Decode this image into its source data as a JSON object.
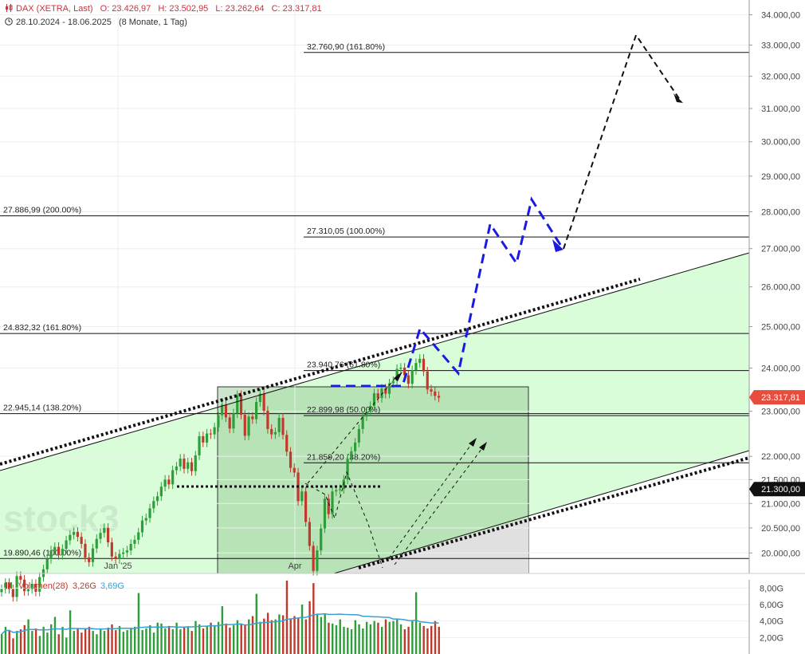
{
  "header": {
    "symbol": "DAX (XETRA, Last)",
    "open": "O: 23.426,97",
    "high": "H: 23.502,95",
    "low": "L: 23.262,64",
    "close": "C: 23.317,81",
    "range": "28.10.2024 - 18.06.2025",
    "period": "(8 Monate, 1 Tag)"
  },
  "watermark": "stock3",
  "colors": {
    "up": "#2e9e3a",
    "down": "#c0392b",
    "channel_fill": "#d9fdd9",
    "box_fill": "#8fc48f",
    "blue_path": "#1a1ae0",
    "price_badge": "#e74c3c",
    "level_badge": "#111111",
    "volume_avg": "#3aa0d0"
  },
  "chart_data": {
    "type": "candlestick",
    "y_scale": "log",
    "ylim": [
      19600,
      34500
    ],
    "y_ticks": [
      "20.000,00",
      "20.500,00",
      "21.000,00",
      "21.500,00",
      "22.000,00",
      "23.000,00",
      "24.000,00",
      "25.000,00",
      "26.000,00",
      "27.000,00",
      "28.000,00",
      "29.000,00",
      "30.000,00",
      "31.000,00",
      "32.000,00",
      "33.000,00",
      "34.000,00"
    ],
    "x_labels": [
      {
        "label": "Jan '25",
        "date": "2025-01-02"
      },
      {
        "label": "Apr",
        "date": "2025-04-01"
      }
    ],
    "last_price": {
      "value": 23317.81,
      "label": "23.317,81"
    },
    "marked_level": {
      "value": 21300,
      "label": "21.300,00"
    },
    "fib_levels": [
      {
        "value": 32760.9,
        "label": "32.760,90 (161.80%)"
      },
      {
        "value": 27886.99,
        "label": "27.886,99 (200.00%)"
      },
      {
        "value": 27310.05,
        "label": "27.310,05 (100.00%)"
      },
      {
        "value": 24832.32,
        "label": "24.832,32 (161.80%)"
      },
      {
        "value": 23940.76,
        "label": "23.940,76 (61.80%)"
      },
      {
        "value": 22945.14,
        "label": "22.945,14 (138.20%)"
      },
      {
        "value": 22899.98,
        "label": "22.899,98 (50.00%)"
      },
      {
        "value": 21859.2,
        "label": "21.859,20 (38.20%)"
      },
      {
        "value": 19890.46,
        "label": "19.890,46 (100.00%)"
      }
    ],
    "close_series": [
      19300,
      19420,
      19300,
      19150,
      19550,
      19480,
      19260,
      19300,
      19400,
      19250,
      19530,
      19680,
      19880,
      20050,
      20120,
      19960,
      20080,
      20250,
      20360,
      20420,
      20320,
      20180,
      19910,
      19820,
      20090,
      20280,
      20400,
      20500,
      20210,
      19930,
      19880,
      19980,
      20010,
      20050,
      20180,
      20260,
      20410,
      20650,
      20700,
      20900,
      21050,
      21150,
      21350,
      21500,
      21400,
      21700,
      21780,
      21950,
      21730,
      21870,
      21680,
      22020,
      22440,
      22300,
      22500,
      22480,
      22640,
      22910,
      23150,
      22860,
      22610,
      22950,
      23370,
      22920,
      22450,
      22880,
      22820,
      23210,
      23400,
      23010,
      22600,
      22480,
      22530,
      22850,
      22470,
      22100,
      21750,
      21650,
      21050,
      21250,
      20620,
      20140,
      19650,
      20050,
      20490,
      21100,
      20780,
      21250,
      21280,
      21300,
      21500,
      21950,
      22110,
      22300,
      22600,
      22880,
      22990,
      23120,
      23410,
      23300,
      23520,
      23400,
      23640,
      23700,
      23980,
      24010,
      23830,
      23630,
      23950,
      24120,
      24220,
      23920,
      23500,
      23450,
      23350,
      23310
    ],
    "volume": {
      "label": "Volumen(28)",
      "current": "3,26G",
      "average": "3,69G",
      "ticks": [
        "2,00G",
        "4,00G",
        "6,00G",
        "8,00G"
      ],
      "ylim": [
        0,
        9
      ],
      "values": [
        2.4,
        3.3,
        2.9,
        1.9,
        2.8,
        3.0,
        3.5,
        4.2,
        2.8,
        3.1,
        2.2,
        3.3,
        2.6,
        3.6,
        4.5,
        2.4,
        3.3,
        2.0,
        5.3,
        2.8,
        3.1,
        2.6,
        3.0,
        3.3,
        2.8,
        2.4,
        3.0,
        2.8,
        3.2,
        3.6,
        2.9,
        3.4,
        2.7,
        2.9,
        3.2,
        3.3,
        7.4,
        2.9,
        3.1,
        3.5,
        2.6,
        3.8,
        3.7,
        3.1,
        3.4,
        3.0,
        3.8,
        3.0,
        3.2,
        3.3,
        2.8,
        4.0,
        3.6,
        3.1,
        3.4,
        3.8,
        3.5,
        3.9,
        5.8,
        3.7,
        3.2,
        3.5,
        4.1,
        3.7,
        3.6,
        4.2,
        4.6,
        7.3,
        3.9,
        4.3,
        5.0,
        4.1,
        4.2,
        4.8,
        4.7,
        8.9,
        4.3,
        4.6,
        4.4,
        6.0,
        4.2,
        6.4,
        8.6,
        4.9,
        4.5,
        4.9,
        3.8,
        3.7,
        3.5,
        4.2,
        3.3,
        3.2,
        3.0,
        4.1,
        3.6,
        3.1,
        3.9,
        3.6,
        4.0,
        3.8,
        3.3,
        4.2,
        3.9,
        4.0,
        4.2,
        3.6,
        3.0,
        3.3,
        4.0,
        7.5,
        3.8,
        3.4,
        3.1,
        3.4,
        4.0,
        3.3
      ]
    }
  }
}
